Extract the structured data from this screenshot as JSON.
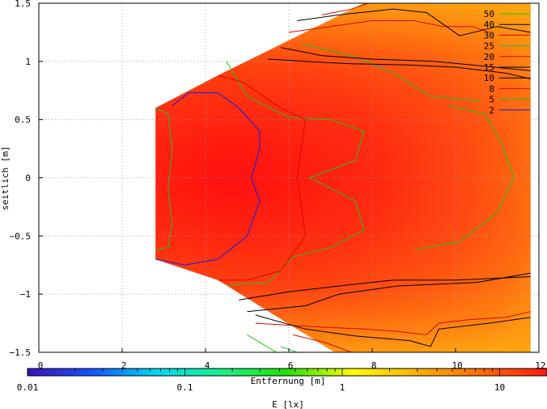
{
  "chart_data": {
    "type": "heatmap",
    "title": "",
    "xlabel": "Entfernung [m]",
    "ylabel": "seitlich [m]",
    "xlim": [
      0,
      12
    ],
    "ylim": [
      -1.5,
      1.5
    ],
    "x_ticks": [
      "0",
      "2",
      "4",
      "6",
      "8",
      "10",
      "12"
    ],
    "y_ticks": [
      "1.5",
      "1",
      "0.5",
      "0",
      "-0.5",
      "-1",
      "-1.5"
    ],
    "grid": true,
    "colorbar": {
      "label": "E [lx]",
      "scale": "log",
      "range": [
        0.01,
        20
      ],
      "ticks": [
        "0.01",
        "0.1",
        "1",
        "10"
      ],
      "colors": [
        "#3a12b5",
        "#1555ff",
        "#00d9f0",
        "#1dee8a",
        "#22e000",
        "#ffff00",
        "#ffb000",
        "#ff6a00",
        "#ff1a14"
      ]
    },
    "legend_position": "top-right",
    "contours": [
      {
        "level": "50",
        "color": "#18d000"
      },
      {
        "level": "40",
        "color": "#000000"
      },
      {
        "level": "30",
        "color": "#e00000"
      },
      {
        "level": "25",
        "color": "#20c040"
      },
      {
        "level": "20",
        "color": "#e00000"
      },
      {
        "level": "15",
        "color": "#000000"
      },
      {
        "level": "10",
        "color": "#000000"
      },
      {
        "level": "8",
        "color": "#e00000"
      },
      {
        "level": "5",
        "color": "#20c020"
      },
      {
        "level": "2",
        "color": "#1020e0"
      }
    ],
    "contour_paths": {
      "2": [
        [
          [
            2.8,
            -0.7
          ],
          [
            3.5,
            -0.75
          ],
          [
            4.3,
            -0.7
          ],
          [
            5.0,
            -0.5
          ],
          [
            5.3,
            -0.2
          ],
          [
            5.1,
            0.0
          ],
          [
            5.3,
            0.25
          ],
          [
            5.3,
            0.4
          ],
          [
            4.8,
            0.6
          ],
          [
            4.3,
            0.73
          ],
          [
            3.6,
            0.73
          ],
          [
            3.2,
            0.62
          ]
        ]
      ],
      "5": [
        [
          [
            2.8,
            0.6
          ],
          [
            3.1,
            0.55
          ],
          [
            3.2,
            0.25
          ],
          [
            3.1,
            -0.1
          ],
          [
            3.2,
            -0.4
          ],
          [
            3.1,
            -0.6
          ],
          [
            2.8,
            -0.62
          ]
        ],
        [
          [
            4.5,
            1.0
          ],
          [
            5.0,
            0.7
          ],
          [
            6.0,
            0.52
          ],
          [
            7.0,
            0.5
          ],
          [
            7.8,
            0.4
          ],
          [
            7.6,
            0.15
          ],
          [
            6.5,
            0.0
          ],
          [
            7.6,
            -0.2
          ],
          [
            7.8,
            -0.45
          ],
          [
            7.0,
            -0.6
          ],
          [
            6.1,
            -0.68
          ],
          [
            5.5,
            -0.9
          ],
          [
            4.5,
            -0.92
          ]
        ],
        [
          [
            9.8,
            0.62
          ],
          [
            10.7,
            0.55
          ],
          [
            11.1,
            0.3
          ],
          [
            11.4,
            0.0
          ],
          [
            11.0,
            -0.3
          ],
          [
            10.1,
            -0.55
          ],
          [
            9.0,
            -0.62
          ]
        ],
        [
          [
            6.3,
            1.15
          ],
          [
            7.5,
            1.05
          ],
          [
            8.5,
            0.9
          ],
          [
            9.4,
            0.7
          ],
          [
            10.6,
            0.66
          ]
        ]
      ],
      "8": [
        [
          [
            4.3,
            0.88
          ],
          [
            4.9,
            0.82
          ],
          [
            5.8,
            0.6
          ],
          [
            6.4,
            0.5
          ],
          [
            6.2,
            0.0
          ],
          [
            6.4,
            -0.5
          ],
          [
            5.8,
            -0.8
          ],
          [
            5.0,
            -0.88
          ],
          [
            4.3,
            -0.88
          ]
        ]
      ],
      "10": [
        [
          [
            5.5,
            1.02
          ],
          [
            6.4,
            1.0
          ],
          [
            7.5,
            0.98
          ],
          [
            8.8,
            0.97
          ],
          [
            10.0,
            0.95
          ],
          [
            11.2,
            0.9
          ],
          [
            11.8,
            0.85
          ]
        ],
        [
          [
            4.8,
            -1.05
          ],
          [
            6.0,
            -0.98
          ],
          [
            7.2,
            -0.93
          ],
          [
            8.5,
            -0.88
          ],
          [
            10.0,
            -0.88
          ],
          [
            11.8,
            -0.85
          ]
        ]
      ],
      "15": [
        [
          [
            5.8,
            1.12
          ],
          [
            6.8,
            1.05
          ],
          [
            8.0,
            1.02
          ],
          [
            9.5,
            1.0
          ],
          [
            11.8,
            0.92
          ]
        ],
        [
          [
            5.0,
            -1.15
          ],
          [
            6.4,
            -1.1
          ],
          [
            7.2,
            -1.0
          ],
          [
            8.6,
            -0.93
          ],
          [
            10.5,
            -0.9
          ],
          [
            11.8,
            -0.82
          ]
        ]
      ],
      "20": [
        [
          [
            6.0,
            1.25
          ],
          [
            7.0,
            1.3
          ],
          [
            8.0,
            1.35
          ],
          [
            9.0,
            1.35
          ],
          [
            9.7,
            1.3
          ],
          [
            10.4,
            1.3
          ],
          [
            10.8,
            1.25
          ]
        ],
        [
          [
            5.2,
            -1.25
          ],
          [
            6.6,
            -1.28
          ],
          [
            7.8,
            -1.3
          ],
          [
            8.6,
            -1.32
          ],
          [
            9.3,
            -1.35
          ],
          [
            9.6,
            -1.25
          ],
          [
            10.3,
            -1.22
          ],
          [
            11.2,
            -1.2
          ],
          [
            11.8,
            -1.15
          ]
        ]
      ],
      "25": [
        [
          [
            5.8,
            -1.45
          ],
          [
            6.2,
            -1.5
          ]
        ]
      ],
      "30": [
        [
          [
            6.8,
            1.4
          ],
          [
            7.5,
            1.45
          ],
          [
            7.9,
            1.5
          ]
        ],
        [
          [
            6.1,
            -1.35
          ],
          [
            6.9,
            -1.42
          ],
          [
            7.5,
            -1.5
          ]
        ]
      ],
      "40": [
        [
          [
            6.2,
            1.35
          ],
          [
            7.2,
            1.4
          ],
          [
            8.5,
            1.45
          ],
          [
            9.3,
            1.42
          ],
          [
            10.1,
            1.22
          ],
          [
            11.0,
            1.3
          ],
          [
            11.8,
            1.25
          ]
        ],
        [
          [
            5.2,
            -1.18
          ],
          [
            6.4,
            -1.3
          ],
          [
            7.6,
            -1.36
          ],
          [
            8.9,
            -1.4
          ],
          [
            9.4,
            -1.45
          ],
          [
            9.6,
            -1.3
          ],
          [
            10.8,
            -1.25
          ],
          [
            11.8,
            -1.2
          ]
        ]
      ],
      "50": [
        [
          [
            5.0,
            -1.35
          ],
          [
            5.7,
            -1.5
          ]
        ]
      ]
    }
  }
}
